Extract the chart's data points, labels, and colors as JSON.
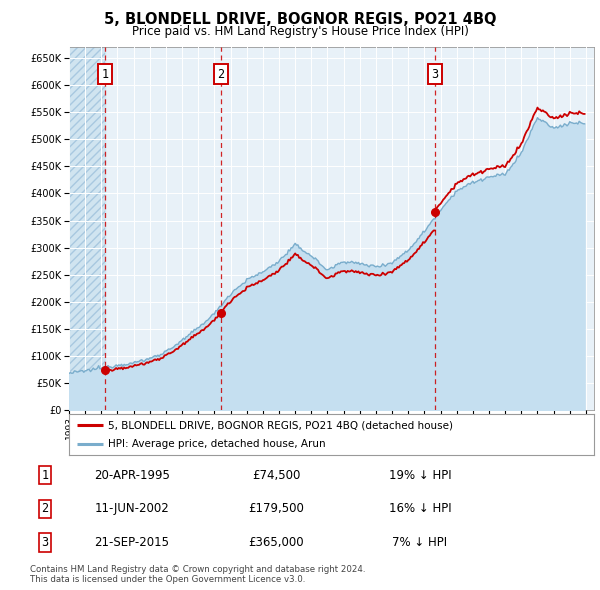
{
  "title": "5, BLONDELL DRIVE, BOGNOR REGIS, PO21 4BQ",
  "subtitle": "Price paid vs. HM Land Registry's House Price Index (HPI)",
  "sale_prices": [
    74500,
    179500,
    365000
  ],
  "sale_labels": [
    "1",
    "2",
    "3"
  ],
  "legend_property": "5, BLONDELL DRIVE, BOGNOR REGIS, PO21 4BQ (detached house)",
  "legend_hpi": "HPI: Average price, detached house, Arun",
  "table_rows": [
    [
      "1",
      "20-APR-1995",
      "£74,500",
      "19% ↓ HPI"
    ],
    [
      "2",
      "11-JUN-2002",
      "£179,500",
      "16% ↓ HPI"
    ],
    [
      "3",
      "21-SEP-2015",
      "£365,000",
      "7% ↓ HPI"
    ]
  ],
  "footnote": "Contains HM Land Registry data © Crown copyright and database right 2024.\nThis data is licensed under the Open Government Licence v3.0.",
  "ylim": [
    0,
    670000
  ],
  "yticks": [
    0,
    50000,
    100000,
    150000,
    200000,
    250000,
    300000,
    350000,
    400000,
    450000,
    500000,
    550000,
    600000,
    650000
  ],
  "ytick_labels": [
    "£0",
    "£50K",
    "£100K",
    "£150K",
    "£200K",
    "£250K",
    "£300K",
    "£350K",
    "£400K",
    "£450K",
    "£500K",
    "£550K",
    "£600K",
    "£650K"
  ],
  "property_line_color": "#cc0000",
  "hpi_line_color": "#7aadcc",
  "hpi_fill_color": "#c5dff0",
  "hatch_bg_color": "#d0e4f0",
  "plot_bg_color": "#e8f1f8",
  "grid_color": "#ffffff",
  "sale_marker_color": "#cc0000",
  "vline_color": "#cc0000",
  "box_color": "#cc0000",
  "hpi_key_years": [
    1993,
    1994,
    1995,
    1996,
    1997,
    1998,
    1999,
    2000,
    2001,
    2002,
    2003,
    2004,
    2005,
    2006,
    2007,
    2008,
    2009,
    2010,
    2011,
    2012,
    2013,
    2014,
    2015,
    2016,
    2017,
    2018,
    2019,
    2020,
    2021,
    2022,
    2023,
    2024
  ],
  "hpi_key_values": [
    68000,
    72000,
    78000,
    83000,
    87000,
    95000,
    108000,
    128000,
    152000,
    178000,
    215000,
    240000,
    255000,
    275000,
    305000,
    285000,
    258000,
    275000,
    270000,
    265000,
    272000,
    295000,
    330000,
    370000,
    405000,
    420000,
    430000,
    435000,
    475000,
    540000,
    520000,
    530000
  ]
}
